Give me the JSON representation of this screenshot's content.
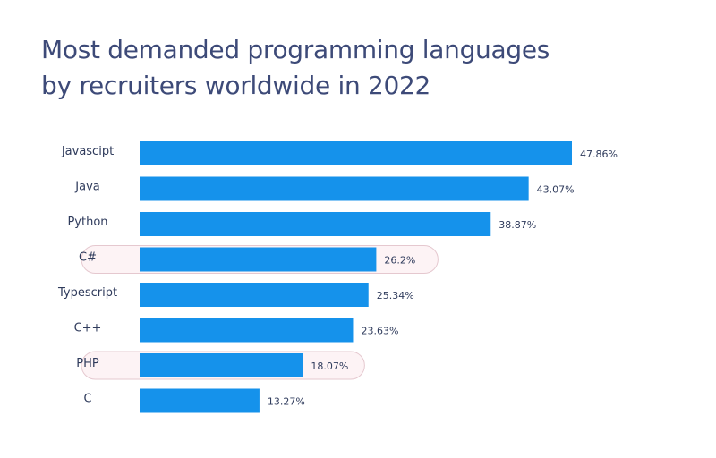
{
  "chart_data": {
    "type": "bar",
    "orientation": "horizontal",
    "title_lines": [
      "Most demanded programming languages",
      "by recruiters worldwide in 2022"
    ],
    "categories": [
      "Javascipt",
      "Java",
      "Python",
      "C#",
      "Typescript",
      "C++",
      "PHP",
      "C"
    ],
    "values": [
      47.86,
      43.07,
      38.87,
      26.2,
      25.34,
      23.63,
      18.07,
      13.27
    ],
    "value_labels": [
      "47.86%",
      "43.07%",
      "38.87%",
      "26.2%",
      "25.34%",
      "23.63%",
      "18.07%",
      "13.27%"
    ],
    "highlighted": [
      "C#",
      "PHP"
    ],
    "grid": false,
    "legend": "none",
    "bar_color": "#1592eb",
    "title_color": "#3d4a78",
    "highlight_fill": "#fdf3f5",
    "highlight_stroke": "#e5c8cf"
  }
}
